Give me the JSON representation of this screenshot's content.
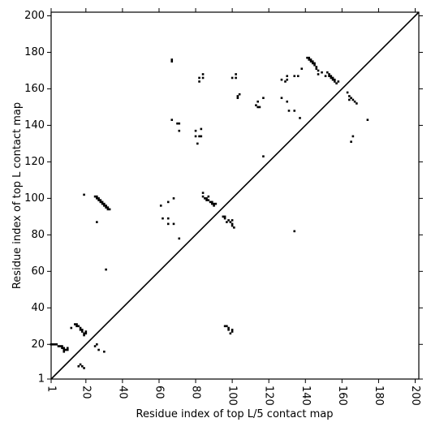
{
  "chart_data": {
    "type": "scatter",
    "x_label": "Residue index of top L/5 contact map",
    "y_label": "Residue index of top L contact map",
    "xlim": [
      1,
      202
    ],
    "ylim": [
      1,
      202
    ],
    "xticks": [
      1,
      20,
      40,
      60,
      80,
      100,
      120,
      140,
      160,
      180,
      200
    ],
    "yticks": [
      1,
      20,
      40,
      60,
      80,
      100,
      120,
      140,
      160,
      180,
      200
    ],
    "color": "#000000",
    "x": [
      25,
      26,
      26,
      27,
      27,
      28,
      28,
      29,
      29,
      30,
      30,
      31,
      31,
      32,
      32,
      33,
      19,
      26,
      31,
      61,
      62,
      65,
      65,
      65,
      68,
      68,
      71,
      67,
      67,
      67,
      70,
      71,
      71,
      80,
      80,
      81,
      82,
      83,
      83,
      82,
      82,
      84,
      84,
      84,
      84,
      85,
      86,
      86,
      87,
      87,
      88,
      89,
      89,
      90,
      90,
      91,
      95,
      96,
      96,
      97,
      98,
      99,
      100,
      100,
      101,
      100,
      100,
      102,
      102,
      103,
      103,
      104,
      113,
      114,
      115,
      114,
      117,
      117,
      127,
      127,
      129,
      130,
      130,
      130,
      131,
      134,
      134,
      134,
      136,
      137,
      138,
      141,
      142,
      142,
      143,
      143,
      144,
      144,
      145,
      145,
      146,
      146,
      147,
      147,
      149,
      151,
      152,
      153,
      153,
      154,
      154,
      155,
      155,
      156,
      156,
      157,
      158,
      163,
      164,
      164,
      165,
      166,
      167,
      168,
      165,
      166,
      174,
      1,
      2,
      3,
      4,
      5,
      6,
      7,
      7,
      8,
      8,
      8,
      9,
      10,
      10,
      12,
      14,
      15,
      15,
      16,
      17,
      17,
      18,
      18,
      19,
      19,
      20,
      20,
      16,
      17,
      18,
      19,
      25,
      26,
      27,
      30,
      96,
      97,
      98,
      98,
      99,
      100,
      100
    ],
    "y": [
      101,
      101,
      100,
      100,
      99,
      99,
      98,
      98,
      97,
      97,
      96,
      96,
      95,
      95,
      94,
      94,
      102,
      87,
      61,
      96,
      89,
      89,
      86,
      98,
      100,
      86,
      78,
      175,
      176,
      143,
      141,
      141,
      137,
      137,
      134,
      130,
      134,
      134,
      138,
      164,
      166,
      166,
      168,
      103,
      101,
      100,
      100,
      99,
      101,
      99,
      98,
      98,
      97,
      97,
      96,
      97,
      90,
      90,
      89,
      87,
      88,
      87,
      86,
      85,
      84,
      88,
      166,
      166,
      168,
      155,
      156,
      157,
      151,
      150,
      150,
      153,
      155,
      123,
      165,
      155,
      164,
      165,
      167,
      153,
      148,
      82,
      167,
      148,
      167,
      144,
      171,
      177,
      177,
      176,
      176,
      175,
      175,
      174,
      174,
      173,
      172,
      171,
      170,
      168,
      169,
      167,
      169,
      168,
      167,
      167,
      166,
      166,
      165,
      165,
      164,
      163,
      164,
      158,
      156,
      154,
      155,
      154,
      153,
      152,
      131,
      134,
      143,
      20,
      20,
      20,
      20,
      19,
      19,
      18,
      19,
      18,
      17,
      16,
      17,
      17,
      18,
      29,
      31,
      31,
      30,
      30,
      29,
      28,
      28,
      27,
      26,
      25,
      27,
      26,
      8,
      9,
      8,
      7,
      19,
      20,
      17,
      16,
      30,
      30,
      29,
      28,
      26,
      27,
      28
    ]
  }
}
